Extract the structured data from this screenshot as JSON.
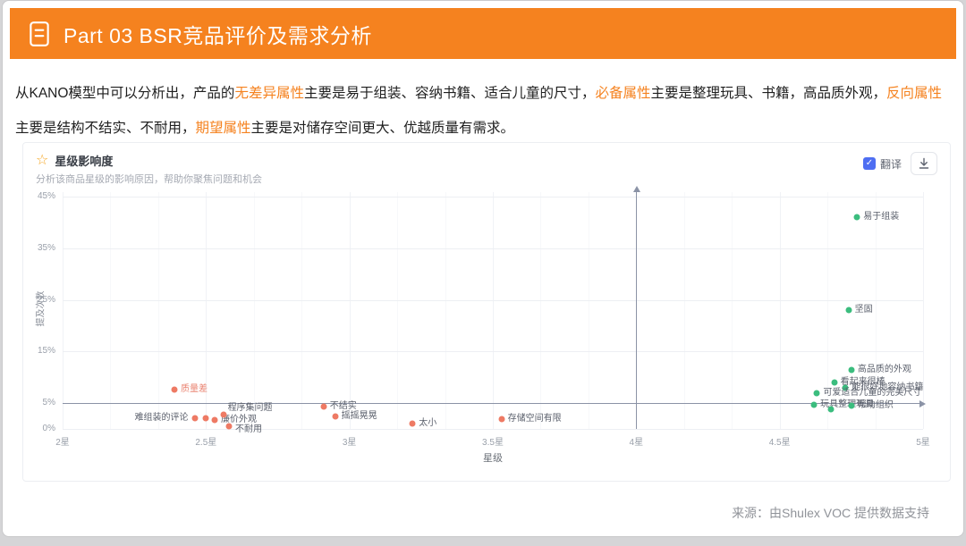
{
  "page": {
    "header": {
      "title": "Part 03  BSR竞品评价及需求分析"
    },
    "intro_segments": [
      {
        "text": "从KANO模型中可以分析出，产品的",
        "highlight": false
      },
      {
        "text": "无差异属性",
        "highlight": true
      },
      {
        "text": "主要是易于组装、容纳书籍、适合儿童的尺寸，",
        "highlight": false
      },
      {
        "text": "必备属性",
        "highlight": true
      },
      {
        "text": "主要是整理玩具、书籍，高品质外观，",
        "highlight": false
      },
      {
        "text": "反向属性",
        "highlight": true
      },
      {
        "text": "主要是结构不结实、不耐用，",
        "highlight": false
      },
      {
        "text": "期望属性",
        "highlight": true
      },
      {
        "text": "主要是对储存空间更大、优越质量有需求。",
        "highlight": false
      }
    ],
    "source": "来源：由Shulex VOC 提供数据支持"
  },
  "chart_panel": {
    "title": "星级影响度",
    "subtitle": "分析该商品星级的影响原因，帮助你聚焦问题和机会",
    "star_icon": "star-icon",
    "translate_label": "翻译",
    "translate_checked": true,
    "download_icon": "download-icon"
  },
  "colors": {
    "header_orange": "#f5821f",
    "highlight_orange": "#f5821f",
    "positive_green": "#3bbd7e",
    "negative_red": "#ee7a64",
    "quadrant_line": "#8b93a6",
    "checkbox_blue": "#4e6ef2"
  },
  "chart_data": {
    "type": "scatter",
    "title": "星级影响度",
    "xlabel": "星级",
    "ylabel": "提及次数",
    "x_ticks": [
      "2星",
      "2.5星",
      "3星",
      "3.5星",
      "4星",
      "4.5星",
      "5星"
    ],
    "x_range": [
      2,
      5
    ],
    "y_ticks": [
      "0%",
      "5%",
      "15%",
      "25%",
      "35%",
      "45%"
    ],
    "y_tick_values": [
      0,
      5,
      15,
      25,
      35,
      45
    ],
    "y_range": [
      0,
      45.8
    ],
    "grid": true,
    "quadrant_x": 4,
    "quadrant_y": 5,
    "series": [
      {
        "name": "positive",
        "color": "#3bbd7e",
        "points": [
          {
            "label": "易于组装",
            "star": 4.77,
            "pct": 41
          },
          {
            "label": "坚固",
            "star": 4.74,
            "pct": 23
          },
          {
            "label": "高品质的外观",
            "star": 4.75,
            "pct": 11.5
          },
          {
            "label": "看起来很棒",
            "star": 4.69,
            "pct": 9
          },
          {
            "label": "能很好地容纳书籍",
            "star": 4.73,
            "pct": 8
          },
          {
            "label": "可爱适合儿童的完美尺寸",
            "star": 4.63,
            "pct": 7
          },
          {
            "label": "玩具整理玩具",
            "star": 4.62,
            "pct": 4.7
          },
          {
            "label": "",
            "star": 4.68,
            "pct": 3.8
          },
          {
            "label": "帮助组织",
            "star": 4.75,
            "pct": 4.5
          }
        ]
      },
      {
        "name": "negative",
        "color": "#ee7a64",
        "points": [
          {
            "label": "质量差",
            "star": 2.39,
            "pct": 7.6,
            "label_color": "#ea8472"
          },
          {
            "label": "难组装的评论",
            "star": 2.46,
            "pct": 2,
            "side": "left"
          },
          {
            "label": "",
            "star": 2.5,
            "pct": 2
          },
          {
            "label": "廉价外观",
            "star": 2.53,
            "pct": 1.7
          },
          {
            "label": "程序集问题",
            "star": 2.56,
            "pct": 2.8,
            "dx": 5,
            "dy": -13
          },
          {
            "label": "不耐用",
            "star": 2.58,
            "pct": 0.5,
            "dy": -2
          },
          {
            "label": "不结实",
            "star": 2.91,
            "pct": 4.3
          },
          {
            "label": "摇摇晃晃",
            "star": 2.95,
            "pct": 2.4
          },
          {
            "label": "太小",
            "star": 3.22,
            "pct": 1
          },
          {
            "label": "存储空间有限",
            "star": 3.53,
            "pct": 1.9
          }
        ]
      }
    ]
  }
}
